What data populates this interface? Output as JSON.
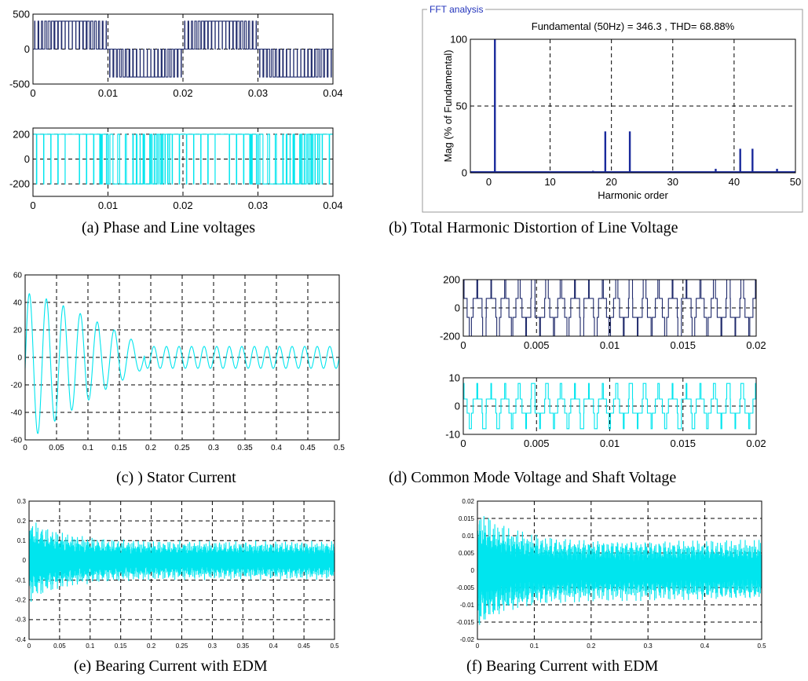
{
  "captions": {
    "a": "(a) Phase and Line voltages",
    "b": "(b) Total Harmonic Distortion of Line Voltage",
    "c": "(c) ) Stator Current",
    "d": "(d) Common Mode Voltage and Shaft Voltage",
    "e": "(e) Bearing Current with EDM",
    "f": "(f) Bearing Current with EDM"
  },
  "colors": {
    "dark": "#1f2a6b",
    "cyan": "#00e5ee",
    "grid": "#000000"
  },
  "chart_data": [
    {
      "id": "a1",
      "type": "line",
      "title": "",
      "xlabel": "",
      "ylabel": "",
      "xlim": [
        0,
        0.04
      ],
      "ylim": [
        -500,
        500
      ],
      "xticks": [
        0,
        0.01,
        0.02,
        0.03,
        0.04
      ],
      "xtick_labels": [
        "0",
        "0.01",
        "0.02",
        "0.03",
        "0.04"
      ],
      "yticks": [
        -500,
        0,
        500
      ],
      "ytick_labels": [
        "-500",
        "0",
        "500"
      ],
      "grid": true,
      "series": [
        {
          "signal": "pwm_phase",
          "amplitude": 400,
          "frequency_hz": 50,
          "carrier_hz": 1050
        }
      ]
    },
    {
      "id": "a2",
      "type": "line",
      "title": "",
      "xlabel": "",
      "ylabel": "",
      "xlim": [
        0,
        0.04
      ],
      "ylim": [
        -300,
        250
      ],
      "xticks": [
        0,
        0.01,
        0.02,
        0.03,
        0.04
      ],
      "xtick_labels": [
        "0",
        "0.01",
        "0.02",
        "0.03",
        "0.04"
      ],
      "yticks": [
        -200,
        0,
        200
      ],
      "ytick_labels": [
        "-200",
        "0",
        "200"
      ],
      "grid": true,
      "series": [
        {
          "signal": "pwm_line",
          "amplitude": 200,
          "frequency_hz": 50,
          "carrier_hz": 1050
        }
      ]
    },
    {
      "id": "b",
      "type": "bar",
      "panel_label": "FFT analysis",
      "title": "Fundamental (50Hz) = 346.3 , THD= 68.88%",
      "xlabel": "Harmonic order",
      "ylabel": "Mag (% of Fundamental)",
      "xlim": [
        -3,
        50
      ],
      "ylim": [
        0,
        100
      ],
      "xticks": [
        0,
        10,
        20,
        30,
        40,
        50
      ],
      "xtick_labels": [
        "0",
        "10",
        "20",
        "30",
        "40",
        "50"
      ],
      "yticks": [
        0,
        50,
        100
      ],
      "ytick_labels": [
        "0",
        "50",
        "100"
      ],
      "grid": true,
      "harmonics": [
        1,
        17,
        19,
        21,
        23,
        25,
        37,
        39,
        41,
        43,
        45,
        47
      ],
      "values": [
        100,
        1.5,
        31,
        1,
        31,
        1,
        3,
        1,
        18,
        18,
        1,
        3
      ]
    },
    {
      "id": "c",
      "type": "line",
      "title": "",
      "xlabel": "",
      "ylabel": "",
      "xlim": [
        0,
        0.5
      ],
      "ylim": [
        -60,
        60
      ],
      "xticks": [
        0,
        0.05,
        0.1,
        0.15,
        0.2,
        0.25,
        0.3,
        0.35,
        0.4,
        0.45,
        0.5
      ],
      "xtick_labels": [
        "0",
        "0.05",
        "0.1",
        "0.15",
        "0.2",
        "0.25",
        "0.3",
        "0.35",
        "0.4",
        "0.45",
        "0.5"
      ],
      "yticks": [
        -60,
        -40,
        -20,
        0,
        20,
        40,
        60
      ],
      "ytick_labels": [
        "-60",
        "-40",
        "-20",
        "0",
        "20",
        "40",
        "60"
      ],
      "grid": true,
      "series": [
        {
          "signal": "stator_current",
          "initial_peak": 55,
          "steady_peak": 8,
          "settle_time_s": 0.19,
          "frequency_hz": 50
        }
      ]
    },
    {
      "id": "d1",
      "type": "line",
      "title": "",
      "xlabel": "",
      "ylabel": "",
      "xlim": [
        0,
        0.02
      ],
      "ylim": [
        -200,
        200
      ],
      "xticks": [
        0,
        0.005,
        0.01,
        0.015,
        0.02
      ],
      "xtick_labels": [
        "0",
        "0.005",
        "0.01",
        "0.015",
        "0.02"
      ],
      "yticks": [
        -200,
        0,
        200
      ],
      "ytick_labels": [
        "-200",
        "0",
        "200"
      ],
      "grid": true,
      "series": [
        {
          "signal": "common_mode",
          "levels": [
            -200,
            -67,
            67,
            200
          ],
          "carrier_hz": 1050
        }
      ]
    },
    {
      "id": "d2",
      "type": "line",
      "title": "",
      "xlabel": "",
      "ylabel": "",
      "xlim": [
        0,
        0.02
      ],
      "ylim": [
        -10,
        10
      ],
      "xticks": [
        0,
        0.005,
        0.01,
        0.015,
        0.02
      ],
      "xtick_labels": [
        "0",
        "0.005",
        "0.01",
        "0.015",
        "0.02"
      ],
      "yticks": [
        -10,
        0,
        10
      ],
      "ytick_labels": [
        "-10",
        "0",
        "10"
      ],
      "grid": true,
      "series": [
        {
          "signal": "shaft_voltage",
          "levels": [
            -8,
            -2.5,
            2.5,
            8
          ],
          "carrier_hz": 1050
        }
      ]
    },
    {
      "id": "e",
      "type": "line",
      "title": "",
      "xlabel": "",
      "ylabel": "",
      "xlim": [
        0,
        0.5
      ],
      "ylim": [
        -0.4,
        0.3
      ],
      "xticks": [
        0,
        0.05,
        0.1,
        0.15,
        0.2,
        0.25,
        0.3,
        0.35,
        0.4,
        0.45,
        0.5
      ],
      "xtick_labels": [
        "0",
        "0.05",
        "0.1",
        "0.15",
        "0.2",
        "0.25",
        "0.3",
        "0.35",
        "0.4",
        "0.45",
        "0.5"
      ],
      "yticks": [
        -0.4,
        -0.3,
        -0.2,
        -0.1,
        0,
        0.1,
        0.2,
        0.3
      ],
      "ytick_labels": [
        "-0.4",
        "-0.3",
        "-0.2",
        "-0.1",
        "0",
        "0.1",
        "0.2",
        "0.3"
      ],
      "grid": true,
      "series": [
        {
          "signal": "bearing_current",
          "initial_peak": 0.22,
          "steady_peak": 0.1
        }
      ]
    },
    {
      "id": "f",
      "type": "line",
      "title": "",
      "xlabel": "",
      "ylabel": "",
      "xlim": [
        0,
        0.5
      ],
      "ylim": [
        -0.02,
        0.02
      ],
      "xticks": [
        0,
        0.1,
        0.2,
        0.3,
        0.4,
        0.5
      ],
      "xtick_labels": [
        "0",
        "0.1",
        "0.2",
        "0.3",
        "0.4",
        "0.5"
      ],
      "yticks": [
        -0.02,
        -0.015,
        -0.01,
        -0.005,
        0,
        0.005,
        0.01,
        0.015,
        0.02
      ],
      "ytick_labels": [
        "-0.02",
        "-0.015",
        "-0.01",
        "-0.005",
        "0",
        "0.005",
        "0.01",
        "0.015",
        "0.02"
      ],
      "grid": true,
      "series": [
        {
          "signal": "bearing_current",
          "initial_peak": 0.0185,
          "steady_peak": 0.009
        }
      ]
    }
  ]
}
